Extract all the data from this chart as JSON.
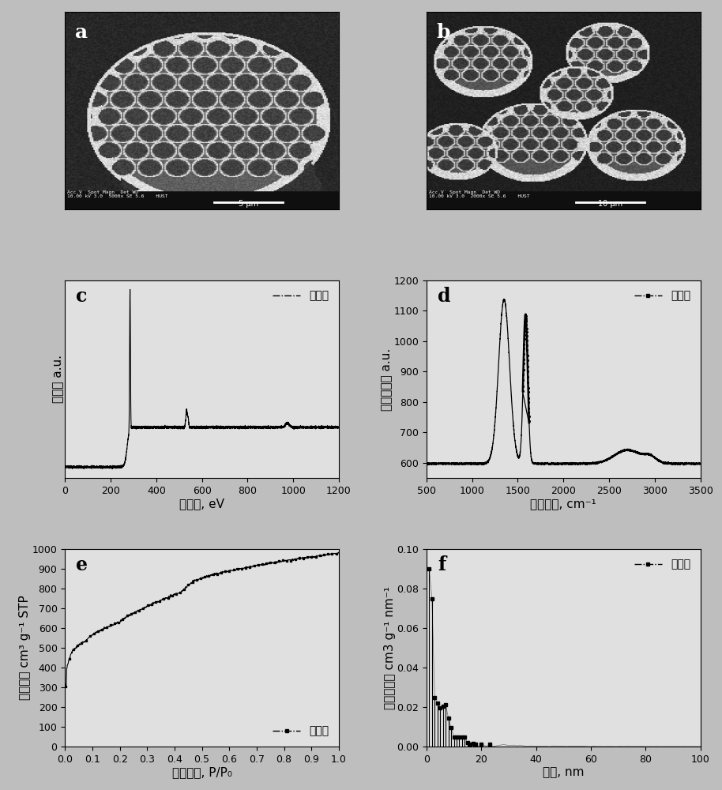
{
  "panel_label_fontsize": 16,
  "bg_color": "#bebebe",
  "chart_bg": "#e0e0e0",
  "panel_c": {
    "xlabel": "结合能, eV",
    "ylabel": "强度， a.u.",
    "xlim": [
      0,
      1200
    ],
    "xticks": [
      0,
      200,
      400,
      600,
      800,
      1000,
      1200
    ],
    "legend_label": "舒筋草"
  },
  "panel_d": {
    "xlabel": "拉曼位移, cm⁻¹",
    "ylabel": "拉曼强度， a.u.",
    "xlim": [
      500,
      3500
    ],
    "ylim": [
      550,
      1200
    ],
    "yticks": [
      600,
      700,
      800,
      900,
      1000,
      1100,
      1200
    ],
    "xticks": [
      500,
      1000,
      1500,
      2000,
      2500,
      3000,
      3500
    ],
    "legend_label": "舒筋草"
  },
  "panel_e": {
    "xlabel": "相对压力, P/P₀",
    "ylabel": "吸附量， cm³ g⁻¹ STP",
    "xlim": [
      0.0,
      1.0
    ],
    "ylim": [
      0,
      1000
    ],
    "xticks": [
      0.0,
      0.1,
      0.2,
      0.3,
      0.4,
      0.5,
      0.6,
      0.7,
      0.8,
      0.9,
      1.0
    ],
    "yticks": [
      0,
      100,
      200,
      300,
      400,
      500,
      600,
      700,
      800,
      900,
      1000
    ],
    "legend_label": "舒筋草"
  },
  "panel_f": {
    "xlabel": "孔径, nm",
    "ylabel": "不同孔容， cm3 g⁻¹ nm⁻¹",
    "xlim": [
      0,
      100
    ],
    "ylim": [
      0,
      0.1
    ],
    "xticks": [
      0,
      20,
      40,
      60,
      80,
      100
    ],
    "yticks": [
      0.0,
      0.02,
      0.04,
      0.06,
      0.08,
      0.1
    ],
    "legend_label": "舒筋草"
  },
  "font_size_axis": 11,
  "font_size_tick": 9,
  "font_size_legend": 10
}
